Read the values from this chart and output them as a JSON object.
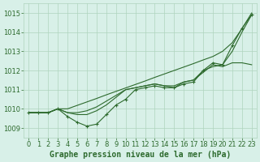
{
  "xlabel": "Graphe pression niveau de la mer (hPa)",
  "x": [
    0,
    1,
    2,
    3,
    4,
    5,
    6,
    7,
    8,
    9,
    10,
    11,
    12,
    13,
    14,
    15,
    16,
    17,
    18,
    19,
    20,
    21,
    22,
    23
  ],
  "line_color": "#2d6a2d",
  "markersize": 3.5,
  "linewidth": 0.8,
  "bg_color": "#d8f0e8",
  "grid_color": "#afd4be",
  "tick_color": "#2d6a2d",
  "label_color": "#2d6a2d",
  "ylim": [
    1008.5,
    1015.5
  ],
  "yticks": [
    1009,
    1010,
    1011,
    1012,
    1013,
    1014,
    1015
  ],
  "xlim": [
    -0.5,
    23.5
  ],
  "xticks": [
    0,
    1,
    2,
    3,
    4,
    5,
    6,
    7,
    8,
    9,
    10,
    11,
    12,
    13,
    14,
    15,
    16,
    17,
    18,
    19,
    20,
    21,
    22,
    23
  ],
  "xlabel_fontsize": 7,
  "tick_fontsize": 6,
  "lines_no_marker": [
    [
      1009.8,
      1009.8,
      1009.8,
      1010.0,
      1010.0,
      1010.18,
      1010.36,
      1010.54,
      1010.73,
      1010.91,
      1011.09,
      1011.27,
      1011.45,
      1011.64,
      1011.82,
      1012.0,
      1012.18,
      1012.36,
      1012.55,
      1012.73,
      1013.0,
      1013.45,
      1014.18,
      1015.0
    ],
    [
      1009.8,
      1009.8,
      1009.8,
      1010.0,
      1009.8,
      1009.8,
      1009.9,
      1010.1,
      1010.4,
      1010.7,
      1011.0,
      1011.1,
      1011.2,
      1011.3,
      1011.2,
      1011.2,
      1011.4,
      1011.5,
      1012.0,
      1012.2,
      1012.3,
      1013.0,
      1014.0,
      1014.9
    ],
    [
      1009.8,
      1009.8,
      1009.8,
      1010.0,
      1009.8,
      1009.7,
      1009.7,
      1009.9,
      1010.2,
      1010.6,
      1011.0,
      1011.1,
      1011.2,
      1011.3,
      1011.2,
      1011.1,
      1011.4,
      1011.5,
      1011.9,
      1012.3,
      1012.2,
      1012.4,
      1012.4,
      1012.3
    ]
  ],
  "line_with_marker": [
    1009.8,
    1009.8,
    1009.8,
    1010.0,
    1009.6,
    1009.3,
    1009.1,
    1009.2,
    1009.7,
    1010.2,
    1010.5,
    1011.0,
    1011.1,
    1011.2,
    1011.1,
    1011.1,
    1011.3,
    1011.4,
    1012.0,
    1012.4,
    1012.3,
    1013.3,
    1014.2,
    1014.9
  ]
}
